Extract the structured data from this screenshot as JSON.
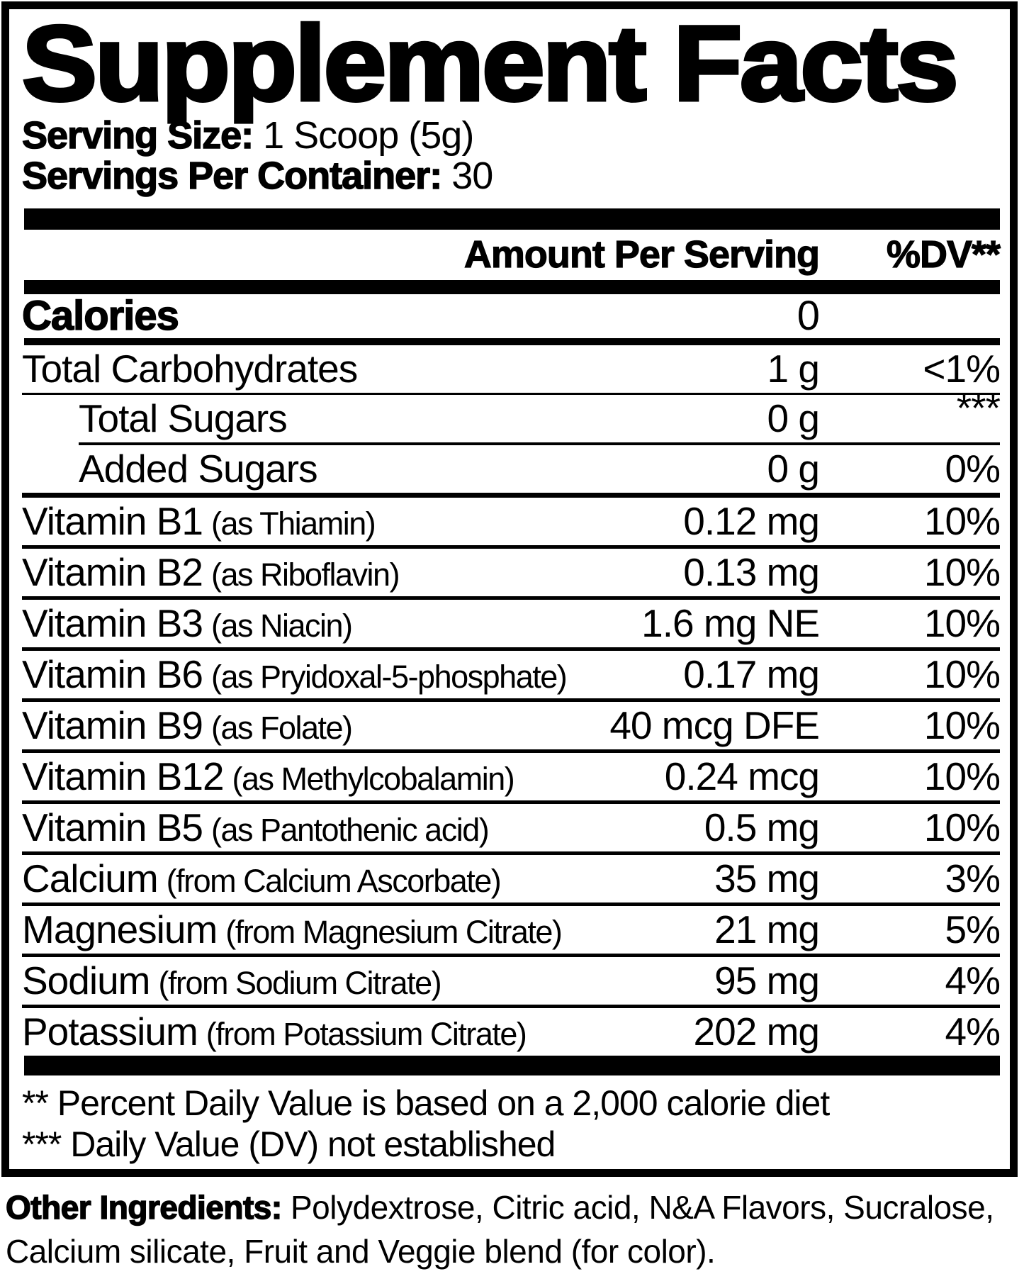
{
  "colors": {
    "ink": "#000000",
    "paper": "#ffffff"
  },
  "title": "Supplement Facts",
  "serving": {
    "size_label": "Serving Size:",
    "size_value": "1 Scoop (5g)",
    "container_label": "Servings Per Container:",
    "container_value": "30"
  },
  "header": {
    "amount": "Amount Per Serving",
    "dv": "%DV**"
  },
  "calories": {
    "label": "Calories",
    "value": "0",
    "dv": ""
  },
  "rows": [
    {
      "name": "Total Carbohydrates",
      "detail": "",
      "amount": "1 g",
      "dv": "<1%",
      "indent": false,
      "dv_raised": false,
      "sep": "thin"
    },
    {
      "name": "Total Sugars",
      "detail": "",
      "amount": "0 g",
      "dv": "***",
      "indent": true,
      "dv_raised": true,
      "sep": "indent"
    },
    {
      "name": "Added Sugars",
      "detail": "",
      "amount": "0 g",
      "dv": "0%",
      "indent": true,
      "dv_raised": false,
      "sep": "group"
    },
    {
      "name": "Vitamin B1",
      "detail": "(as Thiamin)",
      "amount": "0.12 mg",
      "dv": "10%",
      "indent": false,
      "dv_raised": false,
      "sep": "std"
    },
    {
      "name": "Vitamin B2",
      "detail": "(as Riboflavin)",
      "amount": "0.13 mg",
      "dv": "10%",
      "indent": false,
      "dv_raised": false,
      "sep": "std"
    },
    {
      "name": "Vitamin B3",
      "detail": "(as Niacin)",
      "amount": "1.6 mg NE",
      "dv": "10%",
      "indent": false,
      "dv_raised": false,
      "sep": "std"
    },
    {
      "name": "Vitamin B6",
      "detail": "(as Pryidoxal-5-phosphate)",
      "amount": "0.17 mg",
      "dv": "10%",
      "indent": false,
      "dv_raised": false,
      "sep": "std"
    },
    {
      "name": "Vitamin B9",
      "detail": "(as Folate)",
      "amount": "40 mcg DFE",
      "dv": "10%",
      "indent": false,
      "dv_raised": false,
      "sep": "std"
    },
    {
      "name": "Vitamin B12",
      "detail": "(as Methylcobalamin)",
      "amount": "0.24 mcg",
      "dv": "10%",
      "indent": false,
      "dv_raised": false,
      "sep": "std"
    },
    {
      "name": "Vitamin B5",
      "detail": "(as Pantothenic acid)",
      "amount": "0.5 mg",
      "dv": "10%",
      "indent": false,
      "dv_raised": false,
      "sep": "std"
    },
    {
      "name": "Calcium",
      "detail": "(from Calcium Ascorbate)",
      "amount": "35 mg",
      "dv": "3%",
      "indent": false,
      "dv_raised": false,
      "sep": "std"
    },
    {
      "name": "Magnesium",
      "detail": "(from Magnesium Citrate)",
      "amount": "21 mg",
      "dv": "5%",
      "indent": false,
      "dv_raised": false,
      "sep": "std"
    },
    {
      "name": "Sodium",
      "detail": "(from Sodium Citrate)",
      "amount": "95 mg",
      "dv": "4%",
      "indent": false,
      "dv_raised": false,
      "sep": "std"
    },
    {
      "name": "Potassium",
      "detail": "(from Potassium Citrate)",
      "amount": "202 mg",
      "dv": "4%",
      "indent": false,
      "dv_raised": false,
      "sep": "none"
    }
  ],
  "footnotes": [
    "** Percent Daily Value is based on a 2,000 calorie diet",
    "*** Daily Value (DV) not established"
  ],
  "other_ingredients": {
    "label": "Other Ingredients:",
    "text": " Polydextrose, Citric acid, N&A Flavors, Sucralose, Calcium silicate, Fruit and Veggie blend (for color)."
  }
}
